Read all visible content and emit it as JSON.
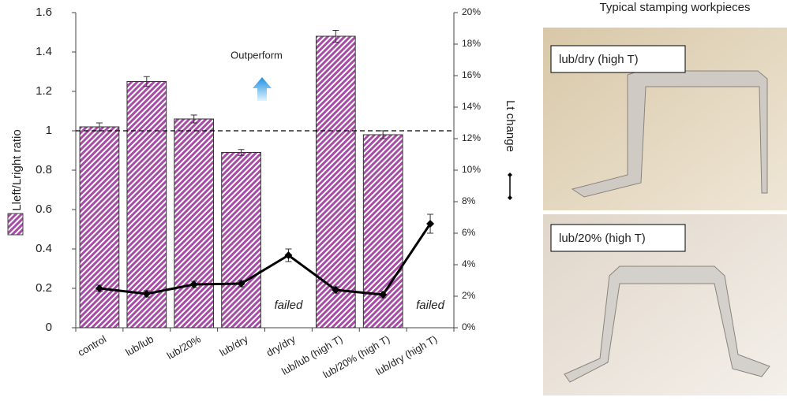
{
  "chart_data": {
    "type": "bar",
    "categories": [
      "control",
      "lub/lub",
      "lub/20%",
      "lub/dry",
      "dry/dry",
      "lub/lub (high T)",
      "lub/20% (high T)",
      "lub/dry (high T)"
    ],
    "y_label": "Lleft/Lright  ratio",
    "y2_label": "Lt change",
    "annotation": "Outperform",
    "null_label": "failed",
    "reference_line": 1,
    "series": [
      {
        "type": "bar",
        "color": "#a64ca6",
        "values": [
          1.02,
          1.25,
          1.06,
          0.89,
          null,
          1.48,
          0.98,
          null
        ],
        "errors": [
          0.02,
          0.025,
          0.02,
          0.015,
          null,
          0.03,
          0.02,
          null
        ]
      },
      {
        "type": "line",
        "axis": "y2",
        "color": "#000000",
        "values": [
          2.5,
          2.15,
          2.75,
          2.8,
          4.6,
          2.4,
          2.1,
          6.6
        ],
        "errors": [
          0.2,
          0.2,
          0.2,
          0.2,
          0.4,
          0.2,
          0.2,
          0.6
        ]
      }
    ],
    "ylim": [
      0,
      1.6
    ],
    "yticks": [
      0,
      0.2,
      0.4,
      0.6,
      0.8,
      1,
      1.2,
      1.4,
      1.6
    ],
    "y2lim": [
      0,
      20
    ],
    "y2ticks": [
      {
        "value": 0,
        "label": "0%"
      },
      {
        "value": 2,
        "label": "2%"
      },
      {
        "value": 4,
        "label": "4%"
      },
      {
        "value": 6,
        "label": "6%"
      },
      {
        "value": 8,
        "label": "8%"
      },
      {
        "value": 10,
        "label": "10%"
      },
      {
        "value": 12,
        "label": "12%"
      },
      {
        "value": 14,
        "label": "14%"
      },
      {
        "value": 16,
        "label": "16%"
      },
      {
        "value": 18,
        "label": "18%"
      },
      {
        "value": 20,
        "label": "20%"
      }
    ]
  },
  "panel": {
    "title": "Typical stamping workpieces",
    "photos": [
      {
        "label": "lub/dry (high T)"
      },
      {
        "label": "lub/20% (high T)"
      }
    ]
  }
}
